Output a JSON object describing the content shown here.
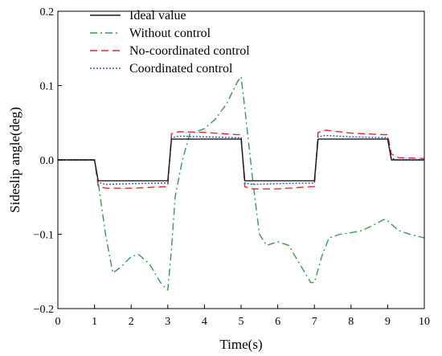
{
  "chart_data": {
    "type": "line",
    "title": "",
    "xlabel": "Time(s)",
    "ylabel": "Sideslip angle(deg)",
    "xlim": [
      0,
      10
    ],
    "ylim": [
      -0.2,
      0.2
    ],
    "xticks": [
      0,
      1,
      2,
      3,
      4,
      5,
      6,
      7,
      8,
      9,
      10
    ],
    "yticks": [
      -0.2,
      -0.1,
      0.0,
      0.1,
      0.2
    ],
    "ytick_labels": [
      "−0.2",
      "−0.1",
      "0.0",
      "0.1",
      "0.2"
    ],
    "grid": false,
    "legend_position": "top-left",
    "series": [
      {
        "name": "Ideal value",
        "color": "#1a1a1a",
        "dash": "solid",
        "x": [
          0,
          1.0,
          1.1,
          2.9,
          3.0,
          3.1,
          4.9,
          5.0,
          5.1,
          6.9,
          7.0,
          7.1,
          8.9,
          9.0,
          9.1,
          10
        ],
        "y": [
          0,
          0,
          -0.028,
          -0.028,
          -0.028,
          0.028,
          0.028,
          0.028,
          -0.028,
          -0.028,
          -0.028,
          0.028,
          0.028,
          0.028,
          0.0,
          0.0
        ]
      },
      {
        "name": "Without control",
        "color": "#2e9e4a",
        "dash": "dashdot",
        "x": [
          0,
          1.0,
          1.1,
          1.3,
          1.5,
          1.7,
          2.0,
          2.2,
          2.5,
          2.8,
          3.0,
          3.1,
          3.2,
          3.4,
          3.6,
          4.0,
          4.3,
          4.6,
          4.9,
          5.0,
          5.1,
          5.3,
          5.5,
          5.7,
          6.0,
          6.3,
          6.6,
          6.9,
          7.0,
          7.2,
          7.4,
          7.7,
          8.0,
          8.3,
          8.6,
          8.9,
          9.0,
          9.3,
          9.6,
          10
        ],
        "y": [
          0,
          0,
          -0.03,
          -0.1,
          -0.152,
          -0.145,
          -0.13,
          -0.127,
          -0.14,
          -0.165,
          -0.175,
          -0.12,
          -0.05,
          0.0,
          0.035,
          0.042,
          0.055,
          0.075,
          0.105,
          0.112,
          0.07,
          -0.02,
          -0.1,
          -0.115,
          -0.11,
          -0.115,
          -0.14,
          -0.165,
          -0.165,
          -0.13,
          -0.105,
          -0.1,
          -0.098,
          -0.095,
          -0.088,
          -0.08,
          -0.082,
          -0.095,
          -0.1,
          -0.105
        ]
      },
      {
        "name": "No-coordinated control",
        "color": "#e8262f",
        "dash": "dashed",
        "x": [
          0,
          1.0,
          1.1,
          1.3,
          2.0,
          2.9,
          3.0,
          3.1,
          3.3,
          4.0,
          4.9,
          5.0,
          5.1,
          5.3,
          6.0,
          6.9,
          7.0,
          7.1,
          7.3,
          8.0,
          8.9,
          9.0,
          9.1,
          9.3,
          10
        ],
        "y": [
          0,
          0,
          -0.035,
          -0.038,
          -0.038,
          -0.036,
          -0.036,
          0.035,
          0.038,
          0.037,
          0.034,
          0.034,
          -0.036,
          -0.039,
          -0.039,
          -0.036,
          -0.036,
          0.037,
          0.04,
          0.036,
          0.034,
          0.034,
          0.008,
          0.003,
          0.002
        ]
      },
      {
        "name": "Coordinated control",
        "color": "#2855b8",
        "dash": "dotted",
        "x": [
          0,
          1.0,
          1.1,
          1.3,
          2.0,
          2.9,
          3.0,
          3.1,
          3.3,
          4.0,
          4.9,
          5.0,
          5.1,
          5.3,
          6.0,
          6.9,
          7.0,
          7.1,
          7.3,
          8.0,
          8.9,
          9.0,
          9.1,
          9.3,
          10
        ],
        "y": [
          0,
          0,
          -0.03,
          -0.033,
          -0.032,
          -0.031,
          -0.031,
          0.03,
          0.032,
          0.031,
          0.03,
          0.03,
          -0.031,
          -0.033,
          -0.032,
          -0.031,
          -0.031,
          0.031,
          0.033,
          0.031,
          0.03,
          0.03,
          0.002,
          0.0,
          0.0
        ]
      }
    ]
  }
}
